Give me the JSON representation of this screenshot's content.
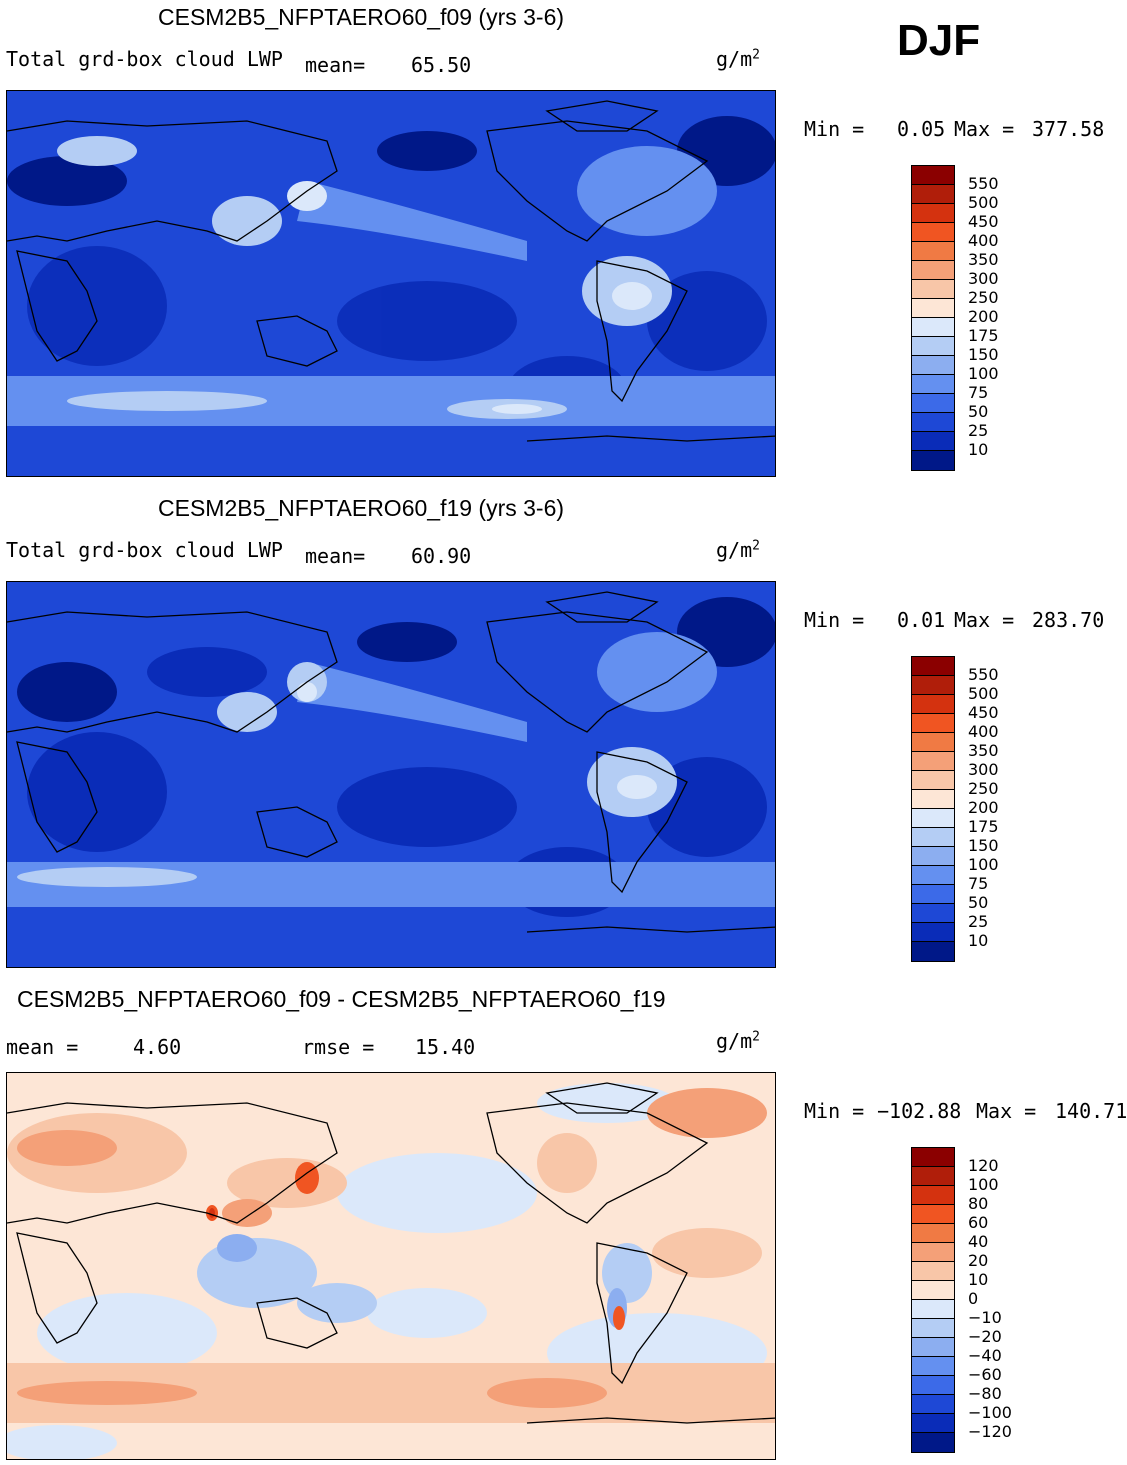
{
  "season": "DJF",
  "units_base": "g/m",
  "units_exp": "2",
  "panels": [
    {
      "title": "CESM2B5_NFPTAERO60_f09 (yrs 3-6)",
      "variable": "Total grd-box cloud LWP",
      "mean_label": "mean=",
      "mean_value": "65.50",
      "min_label": "Min =",
      "min_value": "0.05",
      "max_label": "Max =",
      "max_value": "377.58",
      "colorbar": {
        "labels": [
          "550",
          "500",
          "450",
          "400",
          "350",
          "300",
          "250",
          "200",
          "175",
          "150",
          "100",
          "75",
          "50",
          "25",
          "10"
        ],
        "colors": [
          "#8b0000",
          "#b01e0a",
          "#d4320f",
          "#f05522",
          "#f07a44",
          "#f4a078",
          "#f8c6a8",
          "#fde6d6",
          "#dbe8fa",
          "#b4cdf4",
          "#8caef0",
          "#6490f0",
          "#3c6ae8",
          "#1e48d6",
          "#0a2cb8",
          "#001888"
        ]
      }
    },
    {
      "title": "CESM2B5_NFPTAERO60_f19 (yrs 3-6)",
      "variable": "Total grd-box cloud LWP",
      "mean_label": "mean=",
      "mean_value": "60.90",
      "min_label": "Min =",
      "min_value": "0.01",
      "max_label": "Max =",
      "max_value": "283.70",
      "colorbar": {
        "labels": [
          "550",
          "500",
          "450",
          "400",
          "350",
          "300",
          "250",
          "200",
          "175",
          "150",
          "100",
          "75",
          "50",
          "25",
          "10"
        ],
        "colors": [
          "#8b0000",
          "#b01e0a",
          "#d4320f",
          "#f05522",
          "#f07a44",
          "#f4a078",
          "#f8c6a8",
          "#fde6d6",
          "#dbe8fa",
          "#b4cdf4",
          "#8caef0",
          "#6490f0",
          "#3c6ae8",
          "#1e48d6",
          "#0a2cb8",
          "#001888"
        ]
      }
    },
    {
      "title": "CESM2B5_NFPTAERO60_f09 - CESM2B5_NFPTAERO60_f19",
      "mean_label": "mean =",
      "mean_value": "4.60",
      "rmse_label": "rmse =",
      "rmse_value": "15.40",
      "min_label": "Min =",
      "min_value": "−102.88",
      "max_label": "Max =",
      "max_value": "140.71",
      "colorbar": {
        "labels": [
          "120",
          "100",
          "80",
          "60",
          "40",
          "20",
          "10",
          "0",
          "−10",
          "−20",
          "−40",
          "−60",
          "−80",
          "−100",
          "−120"
        ],
        "colors": [
          "#8b0000",
          "#b01e0a",
          "#d4320f",
          "#f05522",
          "#f07a44",
          "#f4a078",
          "#f8c6a8",
          "#fde6d6",
          "#dbe8fa",
          "#b4cdf4",
          "#8caef0",
          "#6490f0",
          "#3c6ae8",
          "#1e48d6",
          "#0a2cb8",
          "#001888"
        ]
      }
    }
  ]
}
